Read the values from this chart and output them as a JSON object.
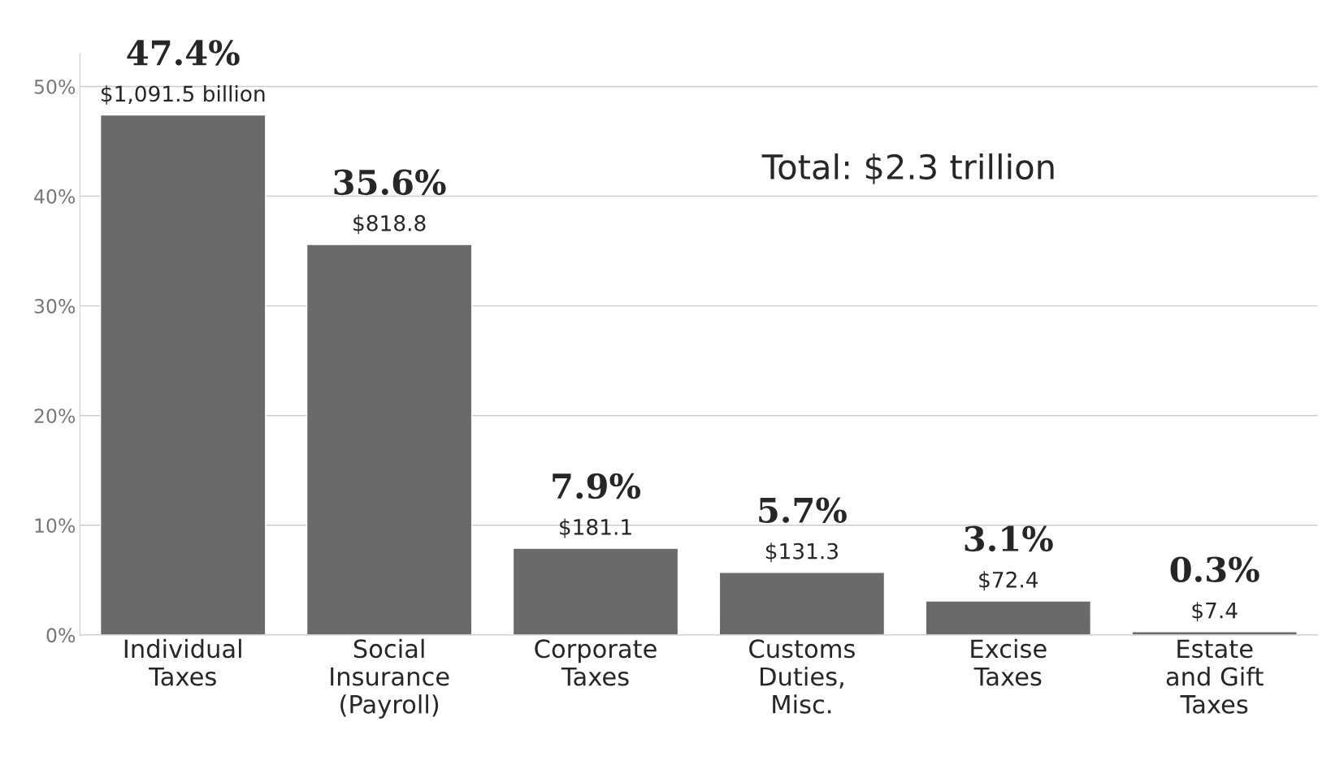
{
  "chart_data": {
    "type": "bar",
    "categories": [
      "Individual\nTaxes",
      "Social\nInsurance\n(Payroll)",
      "Corporate\nTaxes",
      "Customs\nDuties,\nMisc.",
      "Excise\nTaxes",
      "Estate\nand Gift\nTaxes"
    ],
    "values": [
      47.4,
      35.6,
      7.9,
      5.7,
      3.1,
      0.3
    ],
    "value_labels": [
      "47.4%",
      "35.6%",
      "7.9%",
      "5.7%",
      "3.1%",
      "0.3%"
    ],
    "color": "#6a6a6a",
    "ylim": [
      0,
      53
    ],
    "yticks": [
      {
        "value": 0,
        "label": "0%"
      },
      {
        "value": 10,
        "label": "10%"
      },
      {
        "value": 20,
        "label": "20%"
      },
      {
        "value": 30,
        "label": "30%"
      },
      {
        "value": 40,
        "label": "40%"
      },
      {
        "value": 50,
        "label": "50%"
      }
    ],
    "grid": "y",
    "annotations": [
      {
        "text": "$1,091.5 billion",
        "x": "Individual\nTaxes",
        "y": 47.4
      },
      {
        "text": "$818.8",
        "x": "Social\nInsurance\n(Payroll)",
        "y": 35.6
      },
      {
        "text": "$181.1",
        "x": "Corporate\nTaxes",
        "y": 7.9
      },
      {
        "text": "$131.3",
        "x": "Customs\nDuties,\nMisc.",
        "y": 5.7
      },
      {
        "text": "$72.4",
        "x": "Excise\nTaxes",
        "y": 3.1
      },
      {
        "text": "$7.4",
        "x": "Estate\nand Gift\nTaxes",
        "y": 0.3
      },
      "Total: $2.3 trillion"
    ]
  }
}
